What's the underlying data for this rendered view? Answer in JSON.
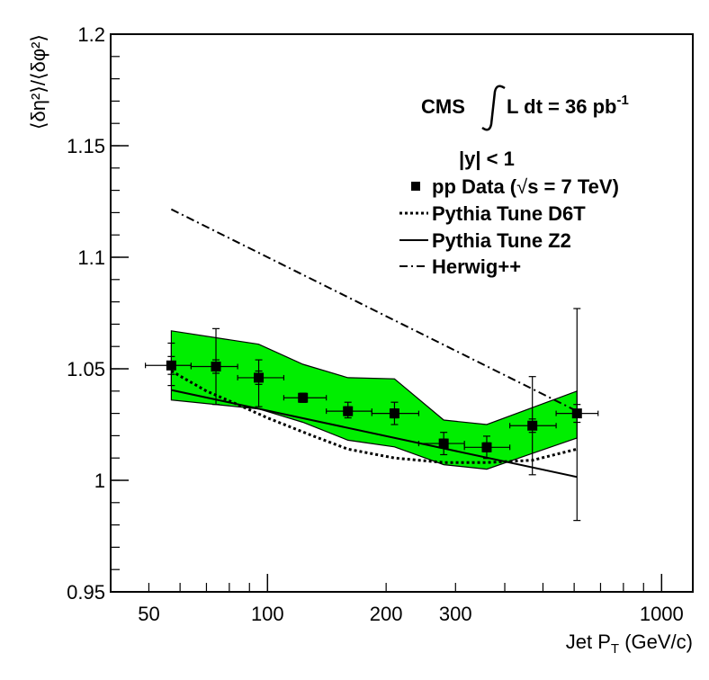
{
  "chart_data": {
    "type": "scatter",
    "title": "",
    "xlabel": "Jet P",
    "xlabel_sub": "T",
    "xlabel_unit": " (GeV/c)",
    "ylabel": "⟨δη²⟩/⟨δφ²⟩",
    "x_scale": "log",
    "xlim": [
      40,
      1200
    ],
    "ylim": [
      0.95,
      1.2
    ],
    "x_ticks": [
      50,
      100,
      200,
      300,
      1000
    ],
    "x_tick_labels": [
      "50",
      "100",
      "200",
      "300",
      "1000"
    ],
    "y_ticks": [
      0.95,
      1.0,
      1.05,
      1.1,
      1.15,
      1.2
    ],
    "y_tick_labels": [
      "0.95",
      "1",
      "1.05",
      "1.1",
      "1.15",
      "1.2"
    ],
    "annotations": {
      "experiment": "CMS",
      "lumi_prefix": "L dt = 36 pb",
      "lumi_exp": "-1",
      "rapidity": "|y| < 1"
    },
    "legend": {
      "placement": "top-right",
      "entries": [
        {
          "label": "pp Data (",
          "label_sqrt": "s = 7 TeV)",
          "style": "marker"
        },
        {
          "label": "Pythia Tune D6T",
          "style": "dotted"
        },
        {
          "label": "Pythia Tune Z2",
          "style": "solid"
        },
        {
          "label": "Herwig++",
          "style": "dashdot"
        }
      ]
    },
    "series": [
      {
        "name": "pp Data",
        "x": [
          57,
          74,
          95,
          123,
          160,
          210,
          280,
          360,
          470,
          610
        ],
        "y": [
          1.0515,
          1.051,
          1.046,
          1.037,
          1.031,
          1.03,
          1.0165,
          1.0148,
          1.0245,
          1.03
        ],
        "x_lo": [
          49,
          64,
          84,
          110,
          141,
          184,
          242,
          316,
          412,
          540
        ],
        "x_hi": [
          64,
          84,
          110,
          141,
          184,
          242,
          316,
          412,
          540,
          690
        ],
        "y_err_stat_lo": [
          0.004,
          0.003,
          0.003,
          0.002,
          0.002,
          0.002,
          0.002,
          0.002,
          0.003,
          0.004
        ],
        "y_err_stat_hi": [
          0.004,
          0.003,
          0.003,
          0.002,
          0.002,
          0.002,
          0.002,
          0.002,
          0.003,
          0.004
        ],
        "y_err_tot_lo": [
          0.009,
          0.017,
          0.013,
          0.002,
          0.003,
          0.005,
          0.005,
          0.005,
          0.022,
          0.048
        ],
        "y_err_tot_hi": [
          0.01,
          0.017,
          0.008,
          0.002,
          0.004,
          0.005,
          0.005,
          0.005,
          0.022,
          0.047
        ]
      },
      {
        "name": "Systematic band",
        "x": [
          57,
          95,
          123,
          160,
          210,
          280,
          360,
          610
        ],
        "upper": [
          1.067,
          1.061,
          1.052,
          1.046,
          1.0455,
          1.027,
          1.025,
          1.04
        ],
        "lower": [
          1.036,
          1.032,
          1.026,
          1.018,
          1.015,
          1.007,
          1.005,
          1.019
        ],
        "color": "#00ee00"
      },
      {
        "name": "Pythia Tune D6T",
        "x": [
          57,
          70,
          84,
          100,
          130,
          160,
          210,
          280,
          360,
          470,
          610
        ],
        "y": [
          1.049,
          1.04,
          1.034,
          1.028,
          1.02,
          1.014,
          1.01,
          1.008,
          1.008,
          1.009,
          1.014
        ]
      },
      {
        "name": "Pythia Tune Z2",
        "x": [
          57,
          610
        ],
        "y": [
          1.0405,
          1.0015
        ]
      },
      {
        "name": "Herwig++",
        "x": [
          57,
          610
        ],
        "y": [
          1.1215,
          1.031
        ]
      }
    ]
  }
}
